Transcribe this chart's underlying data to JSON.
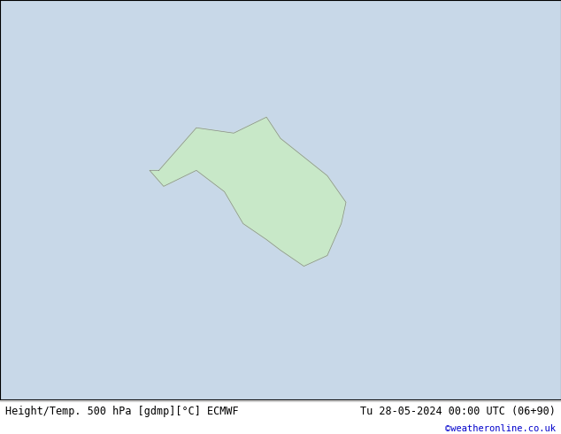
{
  "title_left": "Height/Temp. 500 hPa [gdmp][°C] ECMWF",
  "title_right": "Tu 28-05-2024 00:00 UTC (06+90)",
  "credit": "©weatheronline.co.uk",
  "background_color": "#c8d8e8",
  "land_color": "#c8e8c8",
  "border_color": "#888888",
  "fig_width": 6.34,
  "fig_height": 4.9,
  "dpi": 100,
  "bottom_label_color": "#000000",
  "credit_color": "#0000cc",
  "bottom_bar_color": "#ffffff",
  "geopotential_color": "#000000",
  "temp_neg5_color": "#cc0000",
  "temp_neg10_color": "#ff8800",
  "temp_neg15_color": "#ff8800",
  "temp_neg20_color": "#00aa00",
  "temp_neg25_color": "#00aa00",
  "temp_neg30_color": "#00cccc",
  "temp_neg35_color": "#00cccc",
  "temp_neg36_color": "#00aaff"
}
